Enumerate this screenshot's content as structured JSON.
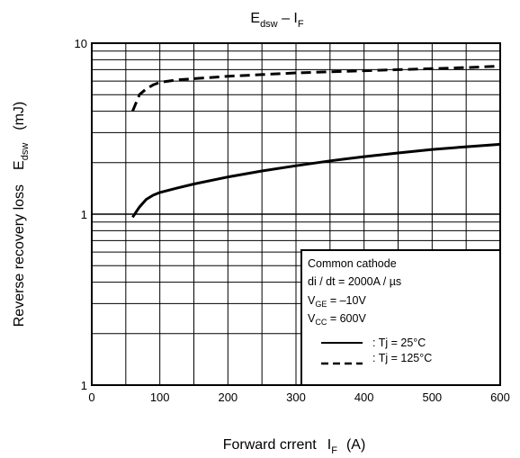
{
  "chart_data": {
    "type": "line",
    "title": {
      "base": "E",
      "sub": "dsw",
      "sep": " – I",
      "sub2": "F"
    },
    "xlabel": {
      "text": "Forward crrent",
      "sym": "I",
      "sub": "F",
      "unit": "(A)"
    },
    "ylabel": {
      "text": "Reverse recovery loss",
      "sym": "E",
      "sub": "dsw",
      "unit": "(mJ)"
    },
    "x_ticks": [
      "0",
      "100",
      "200",
      "300",
      "400",
      "500",
      "600"
    ],
    "y_ticks": [
      "10",
      "1",
      "1"
    ],
    "xlim": [
      0,
      600
    ],
    "y_scale": "log",
    "ylim": [
      0.1,
      10
    ],
    "grid": true,
    "series": [
      {
        "name": ": Tj = 25°C",
        "style": "solid",
        "color": "#000000",
        "x": [
          60,
          70,
          80,
          90,
          100,
          125,
          150,
          200,
          250,
          300,
          350,
          400,
          450,
          500,
          550,
          600
        ],
        "y": [
          0.96,
          1.1,
          1.22,
          1.29,
          1.34,
          1.42,
          1.5,
          1.65,
          1.79,
          1.92,
          2.05,
          2.17,
          2.28,
          2.39,
          2.48,
          2.56
        ]
      },
      {
        "name": ": Tj = 125°C",
        "style": "dashed",
        "color": "#000000",
        "x": [
          60,
          70,
          80,
          90,
          100,
          125,
          150,
          200,
          250,
          300,
          350,
          400,
          450,
          500,
          550,
          600
        ],
        "y": [
          4.0,
          5.0,
          5.4,
          5.7,
          5.9,
          6.1,
          6.2,
          6.4,
          6.55,
          6.7,
          6.8,
          6.9,
          7.0,
          7.1,
          7.2,
          7.35
        ]
      }
    ],
    "legend": {
      "placement": "bottom-right",
      "lines": [
        {
          "text": "Common cathode"
        },
        {
          "text": "di / dt = 2000A / µs"
        },
        {
          "base": "V",
          "sub": "GE",
          "rest": " = –10V"
        },
        {
          "base": "V",
          "sub": "CC",
          "rest": " = 600V"
        }
      ]
    }
  }
}
